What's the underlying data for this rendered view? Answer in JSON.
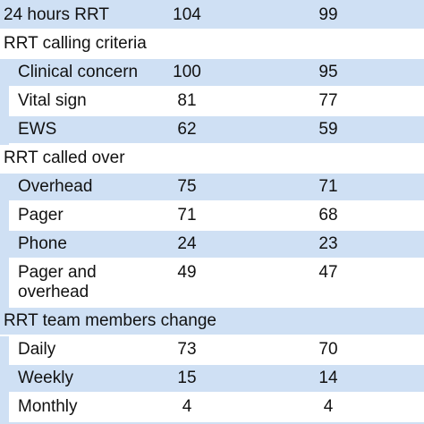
{
  "table": {
    "top_row": {
      "label": "24 hours RRT",
      "values": [
        104,
        99
      ]
    },
    "sections": [
      {
        "title": "RRT calling criteria",
        "rows": [
          {
            "label": "Clinical concern",
            "values": [
              100,
              95
            ]
          },
          {
            "label": "Vital sign",
            "values": [
              81,
              77
            ]
          },
          {
            "label": "EWS",
            "values": [
              62,
              59
            ]
          }
        ]
      },
      {
        "title": "RRT called over",
        "rows": [
          {
            "label": "Overhead",
            "values": [
              75,
              71
            ]
          },
          {
            "label": "Pager",
            "values": [
              71,
              68
            ]
          },
          {
            "label": "Phone",
            "values": [
              24,
              23
            ]
          },
          {
            "label": "Pager and overhead",
            "values": [
              49,
              47
            ]
          }
        ]
      },
      {
        "title": "RRT team members change",
        "rows": [
          {
            "label": "Daily",
            "values": [
              73,
              70
            ]
          },
          {
            "label": "Weekly",
            "values": [
              15,
              14
            ]
          },
          {
            "label": "Monthly",
            "values": [
              4,
              4
            ]
          }
        ]
      }
    ]
  }
}
